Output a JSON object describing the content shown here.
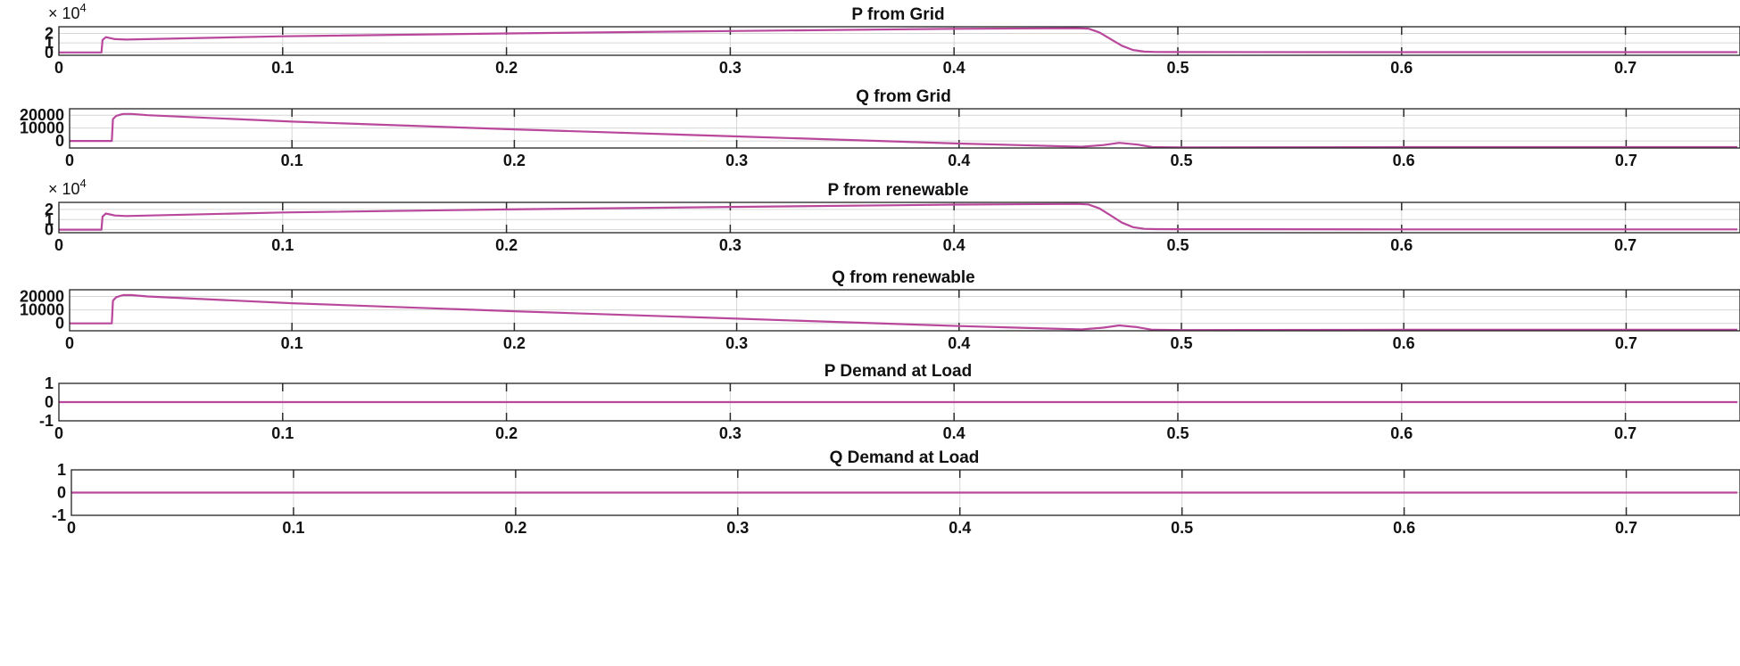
{
  "figure": {
    "line_color": "#b9489d",
    "grid_color": "#d6d6d6",
    "tick_color": "#2b2b2b"
  },
  "chart_data": [
    {
      "type": "line",
      "title": "P from Grid",
      "xlabel": "",
      "ylabel": "",
      "xlim": [
        0,
        0.75
      ],
      "xticks": [
        0,
        0.1,
        0.2,
        0.3,
        0.4,
        0.5,
        0.6,
        0.7
      ],
      "xtick_labels": [
        "0",
        "0.1",
        "0.2",
        "0.3",
        "0.4",
        "0.5",
        "0.6",
        "0.7"
      ],
      "ylim": [
        -0.3,
        2.7
      ],
      "yticks": [
        0,
        1,
        2
      ],
      "ytick_labels": [
        "0",
        "1",
        "2"
      ],
      "exponent_label": "× 10^4",
      "exponent": "4",
      "grid": true,
      "series": [
        {
          "name": "P from Grid",
          "x": [
            0,
            0.019,
            0.0195,
            0.021,
            0.025,
            0.03,
            0.1,
            0.2,
            0.3,
            0.4,
            0.455,
            0.46,
            0.465,
            0.47,
            0.475,
            0.48,
            0.485,
            0.49,
            0.5,
            0.6,
            0.75
          ],
          "y": [
            0,
            0,
            1.3,
            1.6,
            1.4,
            1.35,
            1.7,
            2.0,
            2.25,
            2.48,
            2.55,
            2.5,
            2.1,
            1.4,
            0.7,
            0.25,
            0.08,
            0.05,
            0.04,
            0.03,
            0.03
          ]
        }
      ]
    },
    {
      "type": "line",
      "title": "Q from Grid",
      "xlabel": "",
      "ylabel": "",
      "xlim": [
        0,
        0.75
      ],
      "xticks": [
        0,
        0.1,
        0.2,
        0.3,
        0.4,
        0.5,
        0.6,
        0.7
      ],
      "xtick_labels": [
        "0",
        "0.1",
        "0.2",
        "0.3",
        "0.4",
        "0.5",
        "0.6",
        "0.7"
      ],
      "ylim": [
        -5500,
        25000
      ],
      "yticks": [
        0,
        10000,
        20000
      ],
      "ytick_labels": [
        "0",
        "10000",
        "20000"
      ],
      "grid": true,
      "series": [
        {
          "name": "Q from Grid",
          "x": [
            0,
            0.019,
            0.0195,
            0.021,
            0.024,
            0.028,
            0.035,
            0.1,
            0.2,
            0.3,
            0.4,
            0.455,
            0.465,
            0.472,
            0.48,
            0.487,
            0.5,
            0.6,
            0.75
          ],
          "y": [
            0,
            0,
            17000,
            19500,
            21000,
            21000,
            20000,
            15000,
            9000,
            3500,
            -2000,
            -4500,
            -3200,
            -1500,
            -2800,
            -4800,
            -5000,
            -4800,
            -4800
          ]
        }
      ]
    },
    {
      "type": "line",
      "title": "P from renewable",
      "xlabel": "",
      "ylabel": "",
      "xlim": [
        0,
        0.75
      ],
      "xticks": [
        0,
        0.1,
        0.2,
        0.3,
        0.4,
        0.5,
        0.6,
        0.7
      ],
      "xtick_labels": [
        "0",
        "0.1",
        "0.2",
        "0.3",
        "0.4",
        "0.5",
        "0.6",
        "0.7"
      ],
      "ylim": [
        -0.3,
        2.7
      ],
      "yticks": [
        0,
        1,
        2
      ],
      "ytick_labels": [
        "0",
        "1",
        "2"
      ],
      "exponent_label": "× 10^4",
      "exponent": "4",
      "grid": true,
      "series": [
        {
          "name": "P from renewable",
          "x": [
            0,
            0.019,
            0.0195,
            0.021,
            0.025,
            0.03,
            0.1,
            0.2,
            0.3,
            0.4,
            0.455,
            0.46,
            0.465,
            0.47,
            0.475,
            0.48,
            0.485,
            0.49,
            0.5,
            0.6,
            0.75
          ],
          "y": [
            0,
            0,
            1.3,
            1.6,
            1.4,
            1.35,
            1.7,
            2.0,
            2.25,
            2.48,
            2.55,
            2.5,
            2.1,
            1.4,
            0.7,
            0.25,
            0.08,
            0.05,
            0.04,
            0.03,
            0.03
          ]
        }
      ]
    },
    {
      "type": "line",
      "title": "Q from renewable",
      "xlabel": "",
      "ylabel": "",
      "xlim": [
        0,
        0.75
      ],
      "xticks": [
        0,
        0.1,
        0.2,
        0.3,
        0.4,
        0.5,
        0.6,
        0.7
      ],
      "xtick_labels": [
        "0",
        "0.1",
        "0.2",
        "0.3",
        "0.4",
        "0.5",
        "0.6",
        "0.7"
      ],
      "ylim": [
        -5500,
        25000
      ],
      "yticks": [
        0,
        10000,
        20000
      ],
      "ytick_labels": [
        "0",
        "10000",
        "20000"
      ],
      "grid": true,
      "series": [
        {
          "name": "Q from renewable",
          "x": [
            0,
            0.019,
            0.0195,
            0.021,
            0.024,
            0.028,
            0.035,
            0.1,
            0.2,
            0.3,
            0.4,
            0.455,
            0.465,
            0.472,
            0.48,
            0.487,
            0.5,
            0.6,
            0.75
          ],
          "y": [
            0,
            0,
            17000,
            19500,
            21000,
            21000,
            20000,
            15000,
            9000,
            3500,
            -2000,
            -4500,
            -3200,
            -1500,
            -2800,
            -4800,
            -5000,
            -4800,
            -4800
          ]
        }
      ]
    },
    {
      "type": "line",
      "title": "P Demand at Load",
      "xlabel": "",
      "ylabel": "",
      "xlim": [
        0,
        0.75
      ],
      "xticks": [
        0,
        0.1,
        0.2,
        0.3,
        0.4,
        0.5,
        0.6,
        0.7
      ],
      "xtick_labels": [
        "0",
        "0.1",
        "0.2",
        "0.3",
        "0.4",
        "0.5",
        "0.6",
        "0.7"
      ],
      "ylim": [
        -1,
        1
      ],
      "yticks": [
        -1,
        0,
        1
      ],
      "ytick_labels": [
        "-1",
        "0",
        "1"
      ],
      "grid": true,
      "series": [
        {
          "name": "P Demand at Load",
          "x": [
            0,
            0.75
          ],
          "y": [
            0,
            0
          ]
        }
      ]
    },
    {
      "type": "line",
      "title": "Q Demand at Load",
      "xlabel": "",
      "ylabel": "",
      "xlim": [
        0,
        0.75
      ],
      "xticks": [
        0,
        0.1,
        0.2,
        0.3,
        0.4,
        0.5,
        0.6,
        0.7
      ],
      "xtick_labels": [
        "0",
        "0.1",
        "0.2",
        "0.3",
        "0.4",
        "0.5",
        "0.6",
        "0.7"
      ],
      "ylim": [
        -1,
        1
      ],
      "yticks": [
        -1,
        0,
        1
      ],
      "ytick_labels": [
        "-1",
        "0",
        "1"
      ],
      "grid": true,
      "series": [
        {
          "name": "Q Demand at Load",
          "x": [
            0,
            0.75
          ],
          "y": [
            0,
            0
          ]
        }
      ]
    }
  ]
}
